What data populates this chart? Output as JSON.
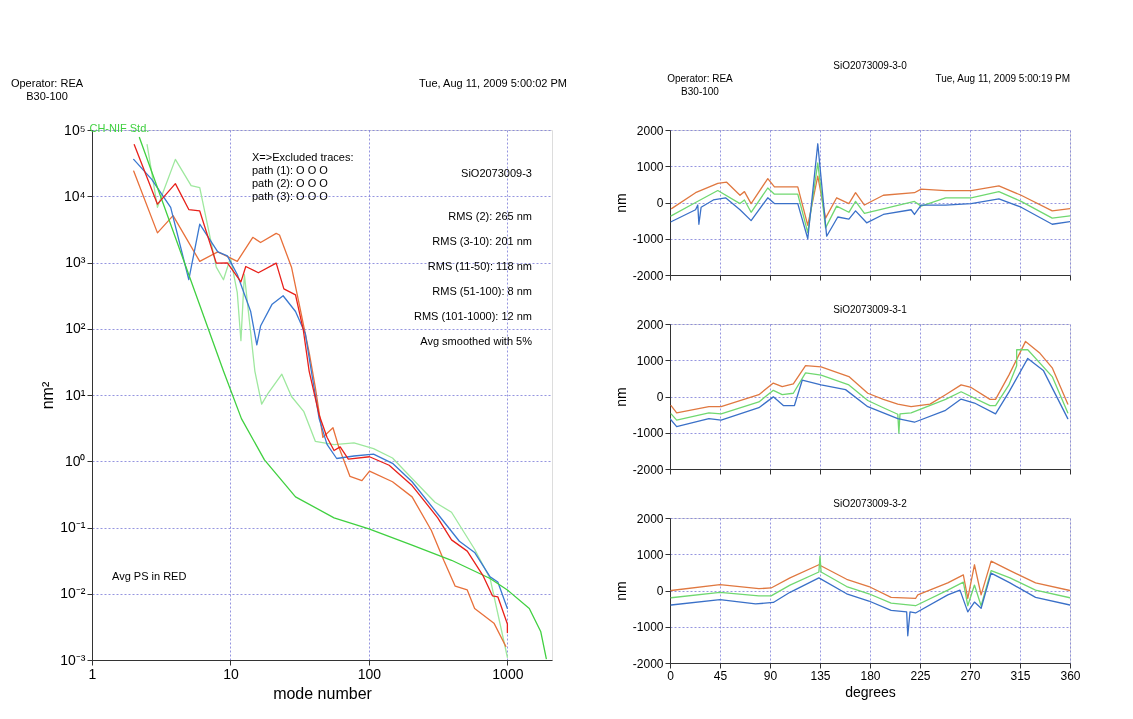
{
  "chart_data": [
    {
      "type": "line",
      "xlabel": "mode number",
      "ylabel": "nm²",
      "log": "xy",
      "grid": true,
      "annotations": [
        "Operator: REA\nB30-100",
        "Tue, Aug 11, 2009  5:00:02 PM",
        "SiO2073009-3",
        "RMS (2): 265 nm",
        "RMS (3-10): 201 nm",
        "RMS (11-50): 118 nm",
        "RMS (51-100): 8 nm",
        "RMS (101-1000): 12 nm",
        "Avg smoothed with 5%",
        "X=>Excluded traces:\npath (1): O O O\npath (2): O O O\npath (3): O O O",
        "Avg PS in RED"
      ],
      "xlim": [
        1,
        2100
      ],
      "ylim": [
        0.001,
        100000
      ],
      "xticks": [
        1,
        10,
        100,
        1000
      ],
      "yticks": [
        {
          "value": 0.001,
          "label": "10⁻³"
        },
        {
          "value": 0.01,
          "label": "10⁻²"
        },
        {
          "value": 0.1,
          "label": "10⁻¹"
        },
        {
          "value": 1,
          "label": "10⁰"
        },
        {
          "value": 10,
          "label": "10¹"
        },
        {
          "value": 100,
          "label": "10²"
        },
        {
          "value": 1000,
          "label": "10³"
        },
        {
          "value": 10000,
          "label": "10⁴"
        },
        {
          "value": 100000,
          "label": "10⁵"
        }
      ],
      "series": [
        {
          "color": "#9ee89e",
          "x": [
            2.5,
            2.97,
            4.0,
            5.2,
            6.0,
            7.9,
            8.9,
            10,
            11.2,
            11.9,
            12.6,
            15,
            16.8,
            18.8,
            23.5,
            27.6,
            33.9,
            41,
            56,
            78,
            108,
            148,
            205,
            300,
            395,
            580,
            750,
            1000
          ],
          "values": [
            60000,
            6800,
            36000,
            14500,
            13500,
            850,
            550,
            1170,
            350,
            66,
            660,
            23,
            7.3,
            10.8,
            20.6,
            9.5,
            5.6,
            2.0,
            1.78,
            1.9,
            1.55,
            1.12,
            0.55,
            0.24,
            0.17,
            0.047,
            0.017,
            0.0011
          ]
        },
        {
          "color": "#e8703a",
          "x": [
            2.0,
            2.97,
            3.85,
            6.0,
            8.1,
            11.2,
            14.5,
            16.5,
            21.4,
            22.6,
            27.6,
            31.8,
            37,
            41,
            46.5,
            55,
            60.5,
            73,
            89,
            101,
            148,
            205,
            282,
            347,
            420,
            513,
            580,
            800,
            975
          ],
          "values": [
            24000,
            2800,
            5100,
            1040,
            1450,
            1040,
            2400,
            2000,
            2750,
            2600,
            850,
            205,
            44,
            13,
            2.3,
            3.2,
            1.65,
            0.59,
            0.51,
            0.71,
            0.49,
            0.29,
            0.091,
            0.032,
            0.013,
            0.0114,
            0.006,
            0.0036,
            0.0016
          ]
        },
        {
          "color": "#3a78d0",
          "x": [
            2.0,
            2.7,
            3.7,
            5.0,
            6.0,
            8.1,
            9.5,
            11.2,
            14,
            15.5,
            16.5,
            20,
            24,
            29.5,
            34.7,
            38,
            43.7,
            49.8,
            58.5,
            78,
            108,
            148,
            205,
            314,
            450,
            580,
            750,
            853,
            1000
          ],
          "values": [
            36000,
            18000,
            6800,
            550,
            3800,
            1450,
            1260,
            660,
            182,
            57,
            110,
            235,
            315,
            182,
            85,
            26,
            4.4,
            1.8,
            1.1,
            1.2,
            1.28,
            0.93,
            0.49,
            0.16,
            0.062,
            0.042,
            0.018,
            0.015,
            0.006
          ]
        },
        {
          "name": "CH-NIF Std.",
          "color": "#40d040",
          "x": [
            2.2,
            8.9,
            12,
            17.6,
            29.5,
            56,
            100,
            205,
            395,
            750,
            1000,
            1440,
            1740,
            1910
          ],
          "values": [
            77000,
            23,
            4.4,
            1.05,
            0.29,
            0.14,
            0.095,
            0.054,
            0.032,
            0.017,
            0.0114,
            0.006,
            0.0027,
            0.00105
          ]
        },
        {
          "color": "#e8201a",
          "x": [
            2.02,
            2.97,
            4.0,
            5.0,
            6.0,
            7.9,
            9.5,
            11.9,
            12.9,
            15.9,
            21.4,
            24.3,
            29.5,
            33.6,
            37,
            43.7,
            49.8,
            56,
            62,
            71,
            101,
            140,
            205,
            314,
            395,
            513,
            665,
            780,
            853,
            1000,
            1000
          ],
          "values": [
            60000,
            7600,
            15500,
            6300,
            6000,
            980,
            990,
            510,
            870,
            700,
            980,
            400,
            325,
            95,
            23,
            5.0,
            2.3,
            1.45,
            1.65,
            1.08,
            1.17,
            0.87,
            0.43,
            0.14,
            0.065,
            0.044,
            0.019,
            0.0093,
            0.009,
            0.0035,
            0.0026
          ]
        }
      ]
    },
    {
      "type": "line",
      "title": "SiO2073009-3-0",
      "ylabel": "nm",
      "grid": true,
      "tick_labels": "y",
      "annotations": [
        "Operator: REA\nB30-100",
        "Tue, Aug 11, 2009  5:00:19 PM"
      ],
      "xlim": [
        0,
        360
      ],
      "ylim": [
        -2000,
        2000
      ],
      "xticks": [
        0,
        45,
        90,
        135,
        180,
        225,
        270,
        315,
        360
      ],
      "yticks": [
        -2000,
        -1000,
        0,
        1000,
        2000
      ],
      "series": [
        {
          "color": "#e07840",
          "x": [
            1.4,
            23,
            43,
            51,
            63,
            67,
            73,
            88,
            94,
            115,
            124,
            133,
            140,
            150,
            161,
            167,
            175,
            192,
            220,
            226,
            248,
            271,
            296,
            316,
            344,
            360
          ],
          "values": [
            -170,
            270,
            530,
            560,
            200,
            300,
            -30,
            660,
            430,
            430,
            -630,
            730,
            -430,
            130,
            -30,
            270,
            -70,
            200,
            270,
            370,
            330,
            330,
            460,
            200,
            -230,
            -170
          ]
        },
        {
          "color": "#70d870",
          "x": [
            1,
            23,
            43,
            63,
            67,
            73,
            88,
            94,
            115,
            124,
            133,
            140,
            150,
            161,
            167,
            175,
            220,
            226,
            248,
            271,
            296,
            316,
            344,
            360
          ],
          "values": [
            -370,
            0,
            330,
            -30,
            70,
            -270,
            400,
            230,
            230,
            -830,
            1090,
            -700,
            -100,
            -270,
            30,
            -300,
            30,
            -100,
            130,
            130,
            300,
            30,
            -430,
            -370
          ]
        },
        {
          "color": "#3a70c8",
          "x": [
            1,
            23,
            25,
            26,
            28,
            39,
            50,
            63,
            73,
            88,
            94,
            115,
            124,
            133,
            141,
            151,
            161,
            167,
            177,
            192,
            217,
            220,
            226,
            248,
            271,
            296,
            316,
            344,
            360
          ],
          "values": [
            -530,
            -200,
            -70,
            -600,
            -130,
            70,
            130,
            -200,
            -500,
            130,
            -30,
            -30,
            -1000,
            1620,
            -930,
            -400,
            -460,
            -230,
            -560,
            -330,
            -200,
            -330,
            -70,
            -70,
            -30,
            100,
            -130,
            -600,
            -530
          ]
        }
      ]
    },
    {
      "type": "line",
      "title": "SiO2073009-3-1",
      "ylabel": "nm",
      "grid": true,
      "tick_labels": "y",
      "xlim": [
        0,
        360
      ],
      "ylim": [
        -2000,
        2000
      ],
      "xticks": [
        0,
        45,
        90,
        135,
        180,
        225,
        270,
        315,
        360
      ],
      "yticks": [
        -2000,
        -1000,
        0,
        1000,
        2000
      ],
      "series": [
        {
          "color": "#e07840",
          "x": [
            1,
            6,
            35,
            46,
            80,
            93,
            101,
            111,
            122,
            136,
            161,
            178,
            192,
            205,
            217,
            234,
            248,
            262,
            271,
            288,
            293,
            305,
            320,
            333,
            344,
            358
          ],
          "values": [
            -250,
            -450,
            -280,
            -280,
            50,
            370,
            270,
            350,
            850,
            820,
            550,
            90,
            -80,
            -210,
            -280,
            -210,
            50,
            320,
            250,
            -80,
            -80,
            590,
            1520,
            1190,
            790,
            -210
          ]
        },
        {
          "color": "#70d870",
          "x": [
            1,
            6,
            35,
            46,
            80,
            93,
            101,
            111,
            122,
            136,
            161,
            178,
            192,
            205,
            206,
            207,
            217,
            248,
            262,
            288,
            293,
            305,
            312,
            312,
            322,
            344,
            358
          ],
          "values": [
            -480,
            -650,
            -450,
            -480,
            -150,
            170,
            50,
            90,
            650,
            590,
            320,
            -110,
            -310,
            -490,
            -1010,
            -480,
            -450,
            -80,
            130,
            -250,
            -250,
            320,
            850,
            1290,
            1290,
            550,
            -450
          ]
        },
        {
          "color": "#3a70c8",
          "x": [
            0,
            6,
            35,
            46,
            80,
            93,
            102,
            112,
            119,
            136,
            158,
            178,
            205,
            220,
            248,
            262,
            274,
            293,
            305,
            322,
            336,
            358
          ],
          "values": [
            -610,
            -830,
            -610,
            -650,
            -310,
            -10,
            -250,
            -250,
            450,
            320,
            190,
            -280,
            -610,
            -710,
            -380,
            -70,
            -180,
            -480,
            120,
            1050,
            720,
            -610
          ]
        }
      ]
    },
    {
      "type": "line",
      "title": "SiO2073009-3-2",
      "xlabel": "degrees",
      "ylabel": "nm",
      "grid": true,
      "xlim": [
        0,
        360
      ],
      "ylim": [
        -2000,
        2000
      ],
      "xticks": [
        0,
        45,
        90,
        135,
        180,
        225,
        270,
        315,
        360
      ],
      "yticks": [
        -2000,
        -1000,
        0,
        1000,
        2000
      ],
      "series": [
        {
          "color": "#e07840",
          "x": [
            1,
            45,
            80,
            91,
            108,
            134,
            159,
            179,
            199,
            221,
            223,
            250,
            264,
            268,
            274,
            280,
            289,
            306,
            329,
            360
          ],
          "values": [
            0,
            160,
            50,
            70,
            350,
            710,
            310,
            110,
            -190,
            -220,
            -120,
            210,
            430,
            -220,
            710,
            -120,
            810,
            550,
            210,
            0
          ]
        },
        {
          "color": "#70d870",
          "x": [
            1,
            45,
            80,
            91,
            108,
            134,
            135,
            136,
            159,
            179,
            199,
            221,
            250,
            264,
            268,
            274,
            280,
            289,
            306,
            329,
            360
          ],
          "values": [
            -200,
            -50,
            -150,
            -150,
            150,
            510,
            950,
            510,
            110,
            -90,
            -350,
            -420,
            10,
            230,
            -420,
            150,
            -420,
            550,
            350,
            10,
            -200
          ]
        },
        {
          "color": "#3a70c8",
          "x": [
            1,
            45,
            77,
            93,
            108,
            134,
            159,
            179,
            199,
            213,
            214,
            216,
            221,
            250,
            261,
            268,
            274,
            280,
            289,
            306,
            329,
            360
          ],
          "values": [
            -400,
            -250,
            -370,
            -330,
            -50,
            350,
            -90,
            -290,
            -550,
            -590,
            -1250,
            -590,
            -620,
            -120,
            10,
            -590,
            -320,
            -490,
            480,
            210,
            -190,
            -400
          ]
        }
      ]
    }
  ]
}
